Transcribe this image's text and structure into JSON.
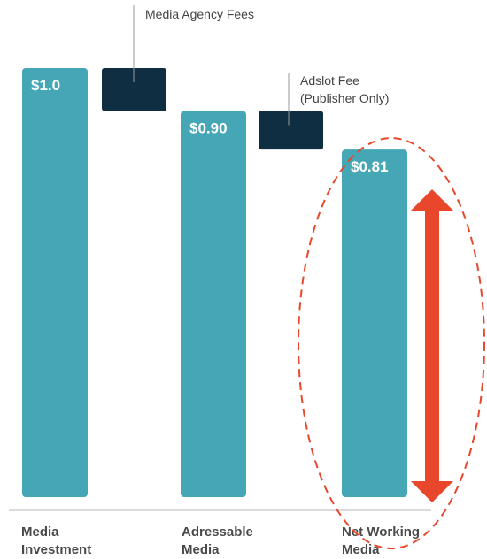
{
  "chart_data": {
    "type": "bar",
    "categories": [
      "Media\nInvestment",
      "Adressable\nMedia",
      "Net Working\nMedia"
    ],
    "values": [
      1.0,
      0.9,
      0.81
    ],
    "value_labels": [
      "$1.0",
      "$0.90",
      "$0.81"
    ],
    "fees": [
      {
        "name": "Media Agency Fees",
        "from": 1.0,
        "to": 0.9
      },
      {
        "name": "Adslot Fee\n(Publisher Only)",
        "from": 0.9,
        "to": 0.81
      }
    ],
    "title": "",
    "xlabel": "",
    "ylabel": "",
    "colors": {
      "bar": "#45a7b6",
      "fee": "#0f2e42",
      "highlight": "#e8472c",
      "axis": "#cfcfcf",
      "leader": "#9a9a9a"
    }
  }
}
